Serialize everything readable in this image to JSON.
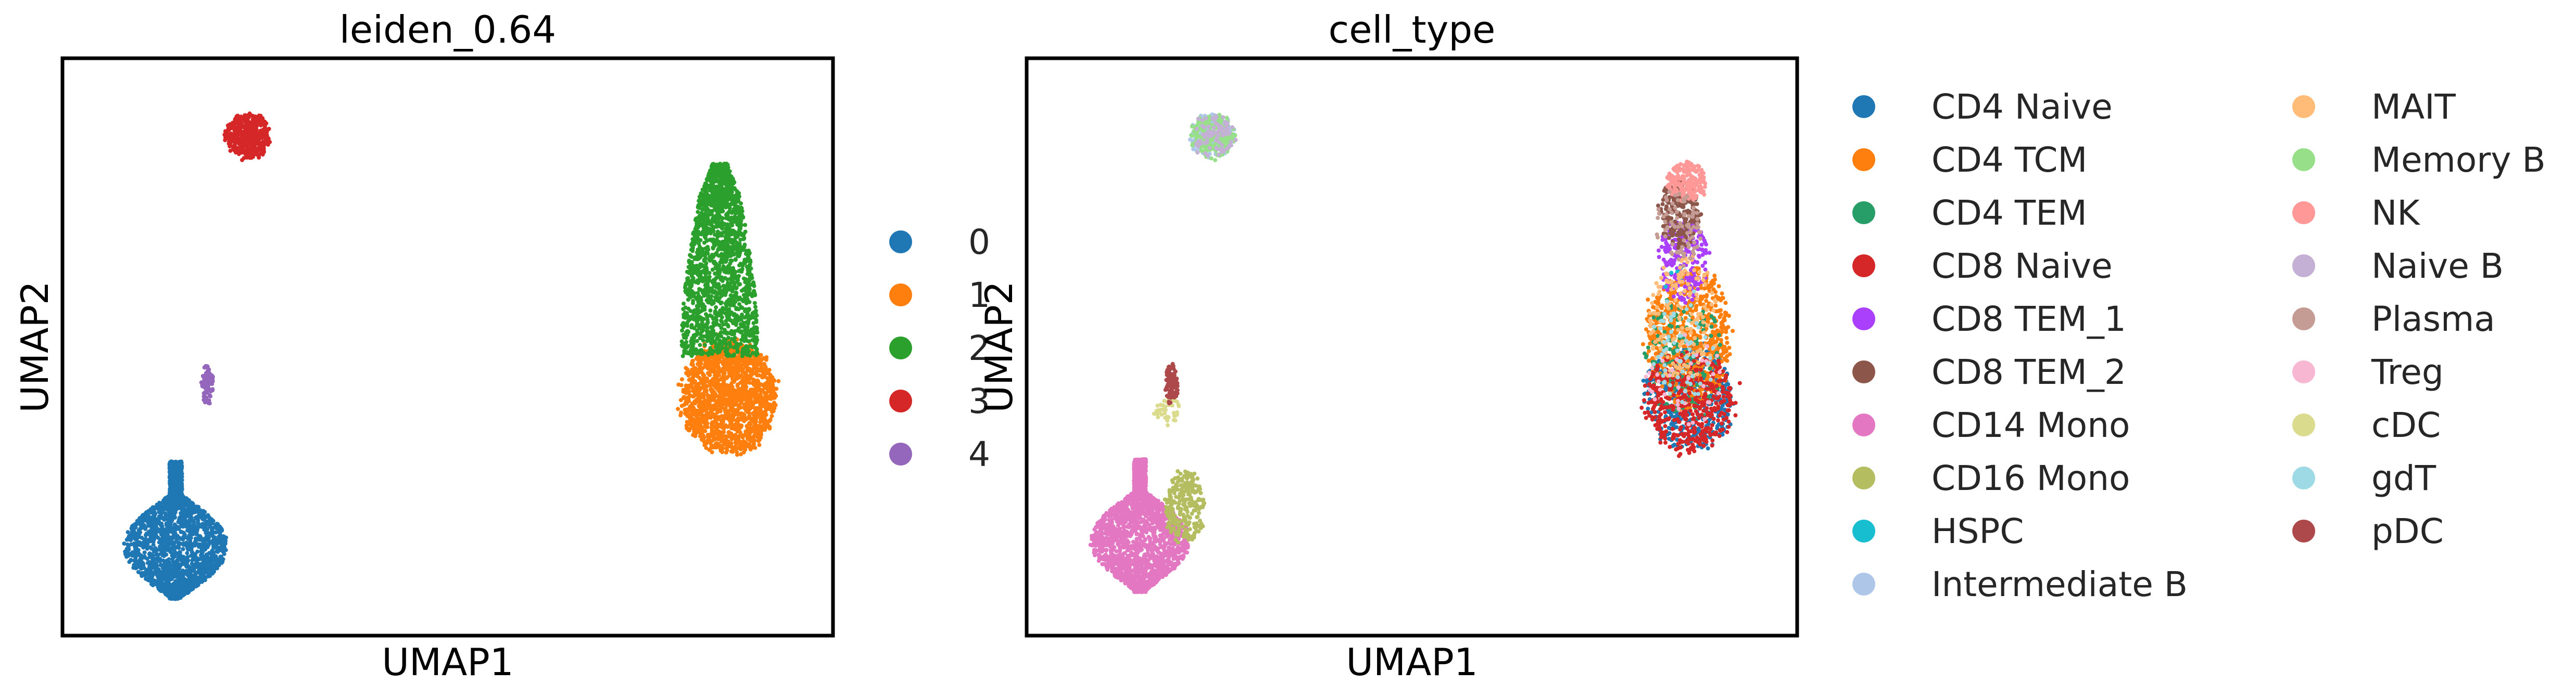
{
  "chart_data": [
    {
      "type": "scatter",
      "title": "leiden_0.64",
      "xlabel": "UMAP1",
      "ylabel": "UMAP2",
      "ticks": "none",
      "legend_placement": "right",
      "legend": [
        "0",
        "1",
        "2",
        "3",
        "4"
      ],
      "colors": [
        "#1f77b4",
        "#ff7f0e",
        "#2ca02c",
        "#d62728",
        "#9467bd"
      ],
      "series": [
        {
          "label": "0",
          "color": "#1f77b4",
          "clusters": [
            {
              "cx": 2.0,
              "cy": 1.0,
              "rx": 1.15,
              "ry": 1.5,
              "n": 2400,
              "shape": "drop"
            }
          ]
        },
        {
          "label": "1",
          "color": "#ff7f0e",
          "clusters": [
            {
              "cx": 14.2,
              "cy": 3.9,
              "rx": 1.05,
              "ry": 1.25,
              "n": 1700,
              "shape": "ellipse"
            }
          ]
        },
        {
          "label": "2",
          "color": "#2ca02c",
          "clusters": [
            {
              "cx": 14.0,
              "cy": 6.9,
              "rx": 0.85,
              "ry": 2.1,
              "n": 1800,
              "shape": "neck"
            }
          ]
        },
        {
          "label": "3",
          "color": "#d62728",
          "clusters": [
            {
              "cx": 3.6,
              "cy": 9.6,
              "rx": 0.5,
              "ry": 0.5,
              "n": 450,
              "shape": "ellipse"
            }
          ]
        },
        {
          "label": "4",
          "color": "#9467bd",
          "clusters": [
            {
              "cx": 2.7,
              "cy": 4.2,
              "rx": 0.14,
              "ry": 0.45,
              "n": 90,
              "shape": "ellipse"
            }
          ]
        }
      ]
    },
    {
      "type": "scatter",
      "title": "cell_type",
      "xlabel": "UMAP1",
      "ylabel": "UMAP2",
      "ticks": "none",
      "legend_placement": "right",
      "legend": [
        "CD4 Naive",
        "CD4 TCM",
        "CD4 TEM",
        "CD8 Naive",
        "CD8 TEM_1",
        "CD8 TEM_2",
        "CD14 Mono",
        "CD16 Mono",
        "HSPC",
        "Intermediate B",
        "MAIT",
        "Memory B",
        "NK",
        "Naive B",
        "Plasma",
        "Treg",
        "cDC",
        "gdT",
        "pDC"
      ],
      "colors": [
        "#1f77b4",
        "#ff7f0e",
        "#279e68",
        "#d62728",
        "#aa40fc",
        "#8c564b",
        "#e377c2",
        "#b5bd61",
        "#17becf",
        "#aec7e8",
        "#ffbb78",
        "#98df8a",
        "#ff9896",
        "#c5b0d5",
        "#c49c94",
        "#f7b6d2",
        "#dbdb8d",
        "#9edae5",
        "#ad494a"
      ],
      "series": [
        {
          "label": "CD4 Naive",
          "color": "#1f77b4",
          "clusters": [
            {
              "cx": 14.1,
              "cy": 3.9,
              "rx": 1.0,
              "ry": 1.2,
              "n": 450,
              "shape": "ellipse"
            }
          ]
        },
        {
          "label": "CD4 TCM",
          "color": "#ff7f0e",
          "clusters": [
            {
              "cx": 14.1,
              "cy": 5.2,
              "rx": 0.95,
              "ry": 1.6,
              "n": 700,
              "shape": "ellipse"
            }
          ]
        },
        {
          "label": "CD4 TEM",
          "color": "#279e68",
          "clusters": [
            {
              "cx": 14.0,
              "cy": 4.8,
              "rx": 0.9,
              "ry": 1.4,
              "n": 160,
              "shape": "ellipse"
            }
          ]
        },
        {
          "label": "CD8 Naive",
          "color": "#d62728",
          "clusters": [
            {
              "cx": 14.1,
              "cy": 3.8,
              "rx": 1.0,
              "ry": 1.1,
              "n": 450,
              "shape": "ellipse"
            }
          ]
        },
        {
          "label": "CD8 TEM_1",
          "color": "#aa40fc",
          "clusters": [
            {
              "cx": 14.0,
              "cy": 6.9,
              "rx": 0.55,
              "ry": 0.9,
              "n": 220,
              "shape": "ellipse"
            }
          ]
        },
        {
          "label": "CD8 TEM_2",
          "color": "#8c564b",
          "clusters": [
            {
              "cx": 13.9,
              "cy": 7.9,
              "rx": 0.45,
              "ry": 0.75,
              "n": 220,
              "shape": "ellipse"
            }
          ]
        },
        {
          "label": "CD14 Mono",
          "color": "#e377c2",
          "clusters": [
            {
              "cx": 2.0,
              "cy": 1.1,
              "rx": 1.1,
              "ry": 1.45,
              "n": 2200,
              "shape": "drop"
            }
          ]
        },
        {
          "label": "CD16 Mono",
          "color": "#b5bd61",
          "clusters": [
            {
              "cx": 3.0,
              "cy": 1.5,
              "rx": 0.45,
              "ry": 0.8,
              "n": 260,
              "shape": "ellipse"
            }
          ]
        },
        {
          "label": "HSPC",
          "color": "#17becf",
          "clusters": [
            {
              "cx": 13.8,
              "cy": 6.5,
              "rx": 0.3,
              "ry": 0.3,
              "n": 6,
              "shape": "ellipse"
            }
          ]
        },
        {
          "label": "Intermediate B",
          "color": "#aec7e8",
          "clusters": [
            {
              "cx": 3.6,
              "cy": 9.6,
              "rx": 0.5,
              "ry": 0.5,
              "n": 150,
              "shape": "ellipse"
            }
          ]
        },
        {
          "label": "MAIT",
          "color": "#ffbb78",
          "clusters": [
            {
              "cx": 14.0,
              "cy": 5.6,
              "rx": 0.8,
              "ry": 1.4,
              "n": 160,
              "shape": "ellipse"
            }
          ]
        },
        {
          "label": "Memory B",
          "color": "#98df8a",
          "clusters": [
            {
              "cx": 3.6,
              "cy": 9.6,
              "rx": 0.48,
              "ry": 0.48,
              "n": 220,
              "shape": "ellipse"
            }
          ]
        },
        {
          "label": "NK",
          "color": "#ff9896",
          "clusters": [
            {
              "cx": 14.05,
              "cy": 8.6,
              "rx": 0.45,
              "ry": 0.45,
              "n": 200,
              "shape": "ellipse"
            }
          ]
        },
        {
          "label": "Naive B",
          "color": "#c5b0d5",
          "clusters": [
            {
              "cx": 3.6,
              "cy": 9.6,
              "rx": 0.48,
              "ry": 0.48,
              "n": 80,
              "shape": "ellipse"
            }
          ]
        },
        {
          "label": "Plasma",
          "color": "#c49c94",
          "clusters": [
            {
              "cx": 13.9,
              "cy": 7.6,
              "rx": 0.5,
              "ry": 0.8,
              "n": 80,
              "shape": "ellipse"
            }
          ]
        },
        {
          "label": "Treg",
          "color": "#f7b6d2",
          "clusters": [
            {
              "cx": 14.0,
              "cy": 4.2,
              "rx": 0.85,
              "ry": 1.2,
              "n": 40,
              "shape": "ellipse"
            }
          ]
        },
        {
          "label": "cDC",
          "color": "#dbdb8d",
          "clusters": [
            {
              "cx": 2.6,
              "cy": 3.6,
              "rx": 0.3,
              "ry": 0.3,
              "n": 40,
              "shape": "ellipse"
            }
          ]
        },
        {
          "label": "gdT",
          "color": "#9edae5",
          "clusters": [
            {
              "cx": 14.0,
              "cy": 5.0,
              "rx": 0.7,
              "ry": 1.3,
              "n": 60,
              "shape": "ellipse"
            }
          ]
        },
        {
          "label": "pDC",
          "color": "#ad494a",
          "clusters": [
            {
              "cx": 2.7,
              "cy": 4.2,
              "rx": 0.14,
              "ry": 0.45,
              "n": 90,
              "shape": "ellipse"
            }
          ]
        }
      ]
    }
  ]
}
